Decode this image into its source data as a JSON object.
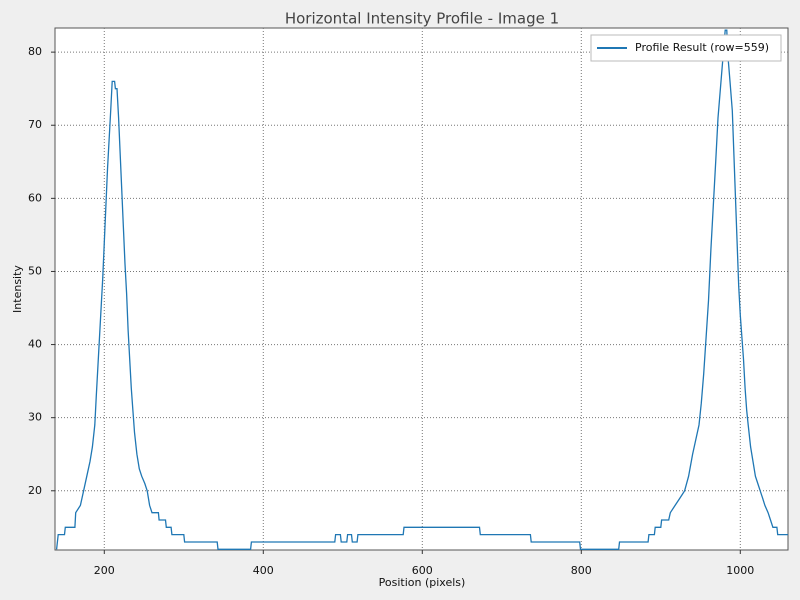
{
  "chart_data": {
    "type": "line",
    "title": "Horizontal Intensity Profile - Image 1",
    "x_label": "Position (pixels)",
    "y_label": "Intensity",
    "x": [
      140,
      142,
      150,
      151,
      163,
      164,
      170,
      172,
      174,
      178,
      182,
      185,
      188,
      190,
      192,
      194,
      196,
      198,
      200,
      202,
      204,
      206,
      208,
      210,
      213,
      214,
      216,
      218,
      220,
      222,
      224,
      226,
      228,
      230,
      232,
      234,
      236,
      238,
      241,
      244,
      247,
      251,
      254,
      257,
      260,
      268,
      269,
      277,
      278,
      284,
      285,
      300,
      301,
      342,
      343,
      384,
      385,
      490,
      491,
      497,
      498,
      505,
      506,
      511,
      512,
      518,
      519,
      576,
      577,
      672,
      673,
      736,
      737,
      798,
      799,
      847,
      848,
      884,
      885,
      892,
      893,
      900,
      901,
      910,
      912,
      918,
      924,
      930,
      935,
      940,
      944,
      948,
      951,
      954,
      957,
      960,
      963,
      966,
      969,
      972,
      975,
      978,
      981,
      983,
      984,
      987,
      990,
      992,
      994,
      996,
      998,
      1000,
      1002,
      1004,
      1006,
      1008,
      1010,
      1013,
      1016,
      1019,
      1022,
      1025,
      1028,
      1031,
      1035,
      1038,
      1041,
      1046,
      1047,
      1060
    ],
    "series": [
      {
        "name": "Profile Result (row=559)",
        "color": "#1f77b4",
        "values": [
          12,
          14,
          14,
          15,
          15,
          17,
          18,
          19,
          20,
          22,
          24,
          26,
          29,
          33,
          37,
          41,
          45,
          49,
          54,
          59,
          64,
          68,
          72,
          76,
          76,
          75,
          75,
          71,
          66,
          61,
          56,
          51,
          47,
          42,
          38,
          34,
          31,
          28,
          25,
          23,
          22,
          21,
          20,
          18,
          17,
          17,
          16,
          16,
          15,
          15,
          14,
          14,
          13,
          13,
          12,
          12,
          13,
          13,
          14,
          14,
          13,
          13,
          14,
          14,
          13,
          13,
          14,
          14,
          15,
          15,
          14,
          14,
          13,
          13,
          12,
          12,
          13,
          13,
          14,
          14,
          15,
          15,
          16,
          16,
          17,
          18,
          19,
          20,
          22,
          25,
          27,
          29,
          32,
          36,
          41,
          46,
          53,
          59,
          65,
          71,
          75,
          79,
          83,
          83,
          80,
          76,
          72,
          66,
          60,
          54,
          48,
          44,
          41,
          38,
          34,
          31,
          29,
          26,
          24,
          22,
          21,
          20,
          19,
          18,
          17,
          16,
          15,
          15,
          14,
          14
        ]
      }
    ],
    "xlim": [
      138,
      1060
    ],
    "ylim": [
      11.9,
      83.3
    ],
    "xticks": [
      200,
      400,
      600,
      800,
      1000
    ],
    "yticks": [
      20,
      30,
      40,
      50,
      60,
      70,
      80
    ],
    "grid": true,
    "legend": "upper right"
  }
}
